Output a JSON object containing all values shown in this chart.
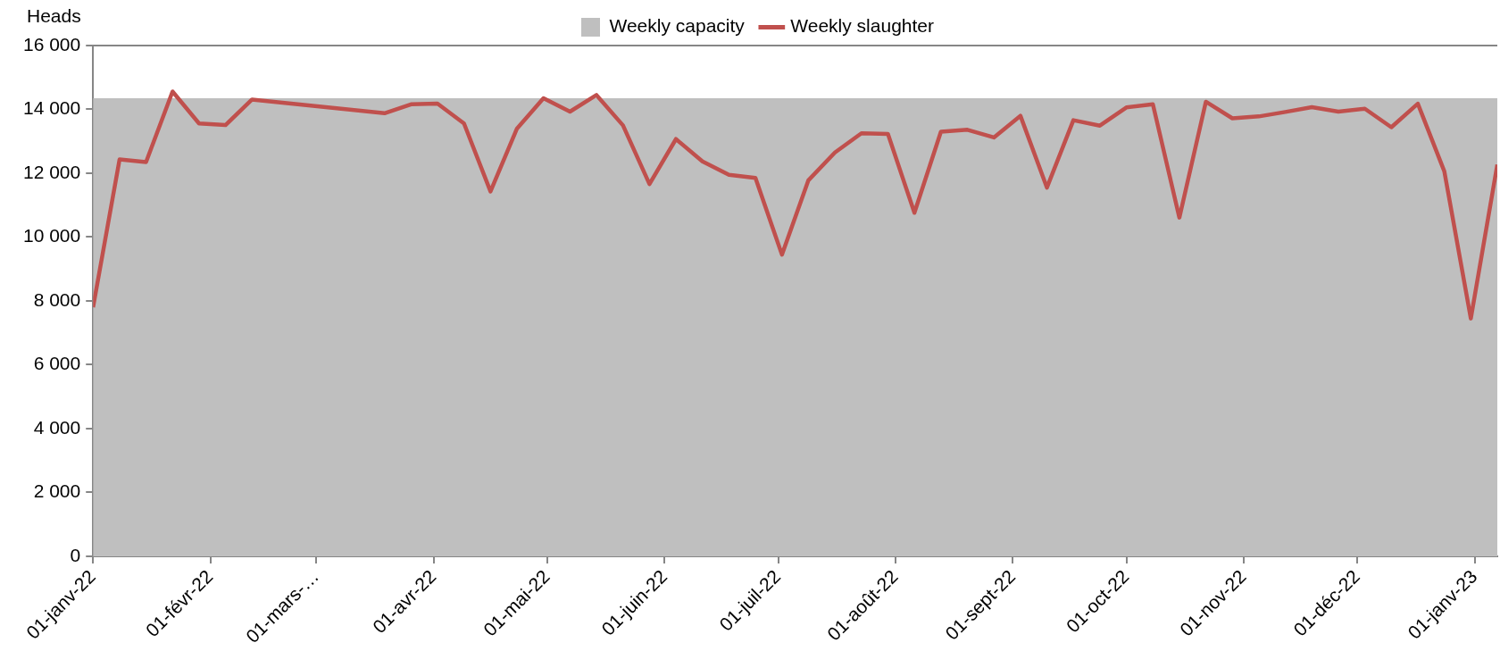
{
  "chart_data": {
    "type": "line",
    "ylabel": "Heads",
    "legend": "top",
    "grid": false,
    "marker": "none",
    "line_style": "solid",
    "xlim": [
      "2022-01-01",
      "2023-01-07"
    ],
    "xticks": [
      {
        "value": "2022-01-01",
        "label": "01-janv-22"
      },
      {
        "value": "2022-02-01",
        "label": "01-févr-22"
      },
      {
        "value": "2022-03-01",
        "label": "01-mars-…"
      },
      {
        "value": "2022-04-01",
        "label": "01-avr-22"
      },
      {
        "value": "2022-05-01",
        "label": "01-mai-22"
      },
      {
        "value": "2022-06-01",
        "label": "01-juin-22"
      },
      {
        "value": "2022-07-01",
        "label": "01-juil-22"
      },
      {
        "value": "2022-08-01",
        "label": "01-août-22"
      },
      {
        "value": "2022-09-01",
        "label": "01-sept-22"
      },
      {
        "value": "2022-10-01",
        "label": "01-oct-22"
      },
      {
        "value": "2022-11-01",
        "label": "01-nov-22"
      },
      {
        "value": "2022-12-01",
        "label": "01-déc-22"
      },
      {
        "value": "2023-01-01",
        "label": "01-janv-23"
      }
    ],
    "ylim": [
      0,
      16000
    ],
    "yticks": [
      0,
      {
        "value": 2000,
        "label": "2 000"
      },
      {
        "value": 4000,
        "label": "4 000"
      },
      {
        "value": 6000,
        "label": "6 000"
      },
      {
        "value": 8000,
        "label": "8 000"
      },
      {
        "value": 10000,
        "label": "10 000"
      },
      {
        "value": 12000,
        "label": "12 000"
      },
      {
        "value": 14000,
        "label": "14 000"
      },
      {
        "value": 16000,
        "label": "16 000"
      }
    ],
    "series": [
      {
        "name": "Weekly capacity",
        "type": "area",
        "color": "#bfbfbf",
        "x": [
          "2022-01-01",
          "2023-01-07"
        ],
        "values": [
          14350,
          14350
        ]
      },
      {
        "name": "Weekly slaughter",
        "type": "line",
        "color": "#c0504d",
        "x": [
          "2022-01-01",
          "2022-01-08",
          "2022-01-15",
          "2022-01-22",
          "2022-01-29",
          "2022-02-05",
          "2022-02-12",
          "2022-03-19",
          "2022-03-26",
          "2022-04-02",
          "2022-04-09",
          "2022-04-16",
          "2022-04-23",
          "2022-04-30",
          "2022-05-07",
          "2022-05-14",
          "2022-05-21",
          "2022-05-28",
          "2022-06-04",
          "2022-06-11",
          "2022-06-18",
          "2022-06-25",
          "2022-07-02",
          "2022-07-09",
          "2022-07-16",
          "2022-07-23",
          "2022-07-30",
          "2022-08-06",
          "2022-08-13",
          "2022-08-20",
          "2022-08-27",
          "2022-09-03",
          "2022-09-10",
          "2022-09-17",
          "2022-09-24",
          "2022-10-01",
          "2022-10-08",
          "2022-10-15",
          "2022-10-22",
          "2022-10-29",
          "2022-11-05",
          "2022-11-12",
          "2022-11-19",
          "2022-11-26",
          "2022-12-03",
          "2022-12-10",
          "2022-12-17",
          "2022-12-24",
          "2022-12-31",
          "2023-01-07"
        ],
        "values": [
          7800,
          12430,
          12350,
          14560,
          13560,
          13510,
          14310,
          13880,
          14160,
          14180,
          13560,
          11430,
          13400,
          14350,
          13930,
          14450,
          13500,
          11660,
          13070,
          12370,
          11950,
          11850,
          9450,
          11780,
          12650,
          13250,
          13230,
          10760,
          13300,
          13360,
          13120,
          13800,
          11550,
          13660,
          13490,
          14060,
          14160,
          10610,
          14240,
          13720,
          13780,
          13920,
          14070,
          13930,
          14020,
          13440,
          14180,
          12060,
          7450,
          12270
        ]
      }
    ]
  }
}
